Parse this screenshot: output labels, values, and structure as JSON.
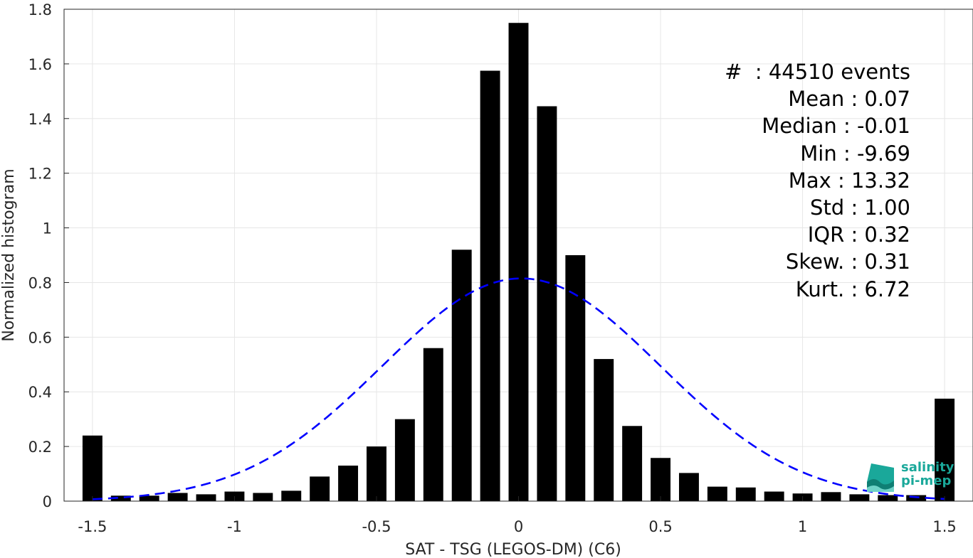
{
  "chart_data": {
    "type": "bar",
    "xlabel": "SAT - TSG (LEGOS-DM) (C6)",
    "ylabel": "Normalized histogram",
    "xlim": [
      -1.6,
      1.6
    ],
    "ylim": [
      0,
      1.8
    ],
    "xticks": [
      -1.5,
      -1,
      -0.5,
      0,
      0.5,
      1,
      1.5
    ],
    "xtick_labels": [
      "-1.5",
      "-1",
      "-0.5",
      "0",
      "0.5",
      "1",
      "1.5"
    ],
    "yticks": [
      0,
      0.2,
      0.4,
      0.6,
      0.8,
      1,
      1.2,
      1.4,
      1.6,
      1.8
    ],
    "ytick_labels": [
      "0",
      "0.2",
      "0.4",
      "0.6",
      "0.8",
      "1",
      "1.2",
      "1.4",
      "1.6",
      "1.8"
    ],
    "grid": true,
    "bar_width": 0.07,
    "bar_color": "#000000",
    "x": [
      -1.5,
      -1.4,
      -1.3,
      -1.2,
      -1.1,
      -1.0,
      -0.9,
      -0.8,
      -0.7,
      -0.6,
      -0.5,
      -0.4,
      -0.3,
      -0.2,
      -0.1,
      0.0,
      0.1,
      0.2,
      0.3,
      0.4,
      0.5,
      0.6,
      0.7,
      0.8,
      0.9,
      1.0,
      1.1,
      1.2,
      1.3,
      1.4,
      1.5
    ],
    "values": [
      0.24,
      0.02,
      0.02,
      0.03,
      0.025,
      0.035,
      0.03,
      0.038,
      0.09,
      0.13,
      0.2,
      0.3,
      0.56,
      0.92,
      1.575,
      1.75,
      1.445,
      0.9,
      0.52,
      0.275,
      0.158,
      0.103,
      0.053,
      0.05,
      0.035,
      0.028,
      0.033,
      0.025,
      0.022,
      0.022,
      0.375
    ],
    "fit_curve": {
      "style": "dashed",
      "color": "#0000ff",
      "mean": 0.01,
      "peak": 0.815,
      "std": 0.49,
      "x_range": [
        -1.5,
        1.5
      ]
    },
    "stats": [
      {
        "label": "#  ",
        "value": ": 44510 events"
      },
      {
        "label": "Mean ",
        "value": ": 0.07"
      },
      {
        "label": "Median ",
        "value": ": -0.01"
      },
      {
        "label": "Min ",
        "value": ": -9.69"
      },
      {
        "label": "Max ",
        "value": ": 13.32"
      },
      {
        "label": "Std ",
        "value": ": 1.00"
      },
      {
        "label": "IQR ",
        "value": ": 0.32"
      },
      {
        "label": "Skew. ",
        "value": ": 0.31"
      },
      {
        "label": "Kurt. ",
        "value": ": 6.72"
      }
    ]
  },
  "logo": {
    "line1": "salinity",
    "line2": "pi-mep",
    "color": "#1aa89a"
  }
}
